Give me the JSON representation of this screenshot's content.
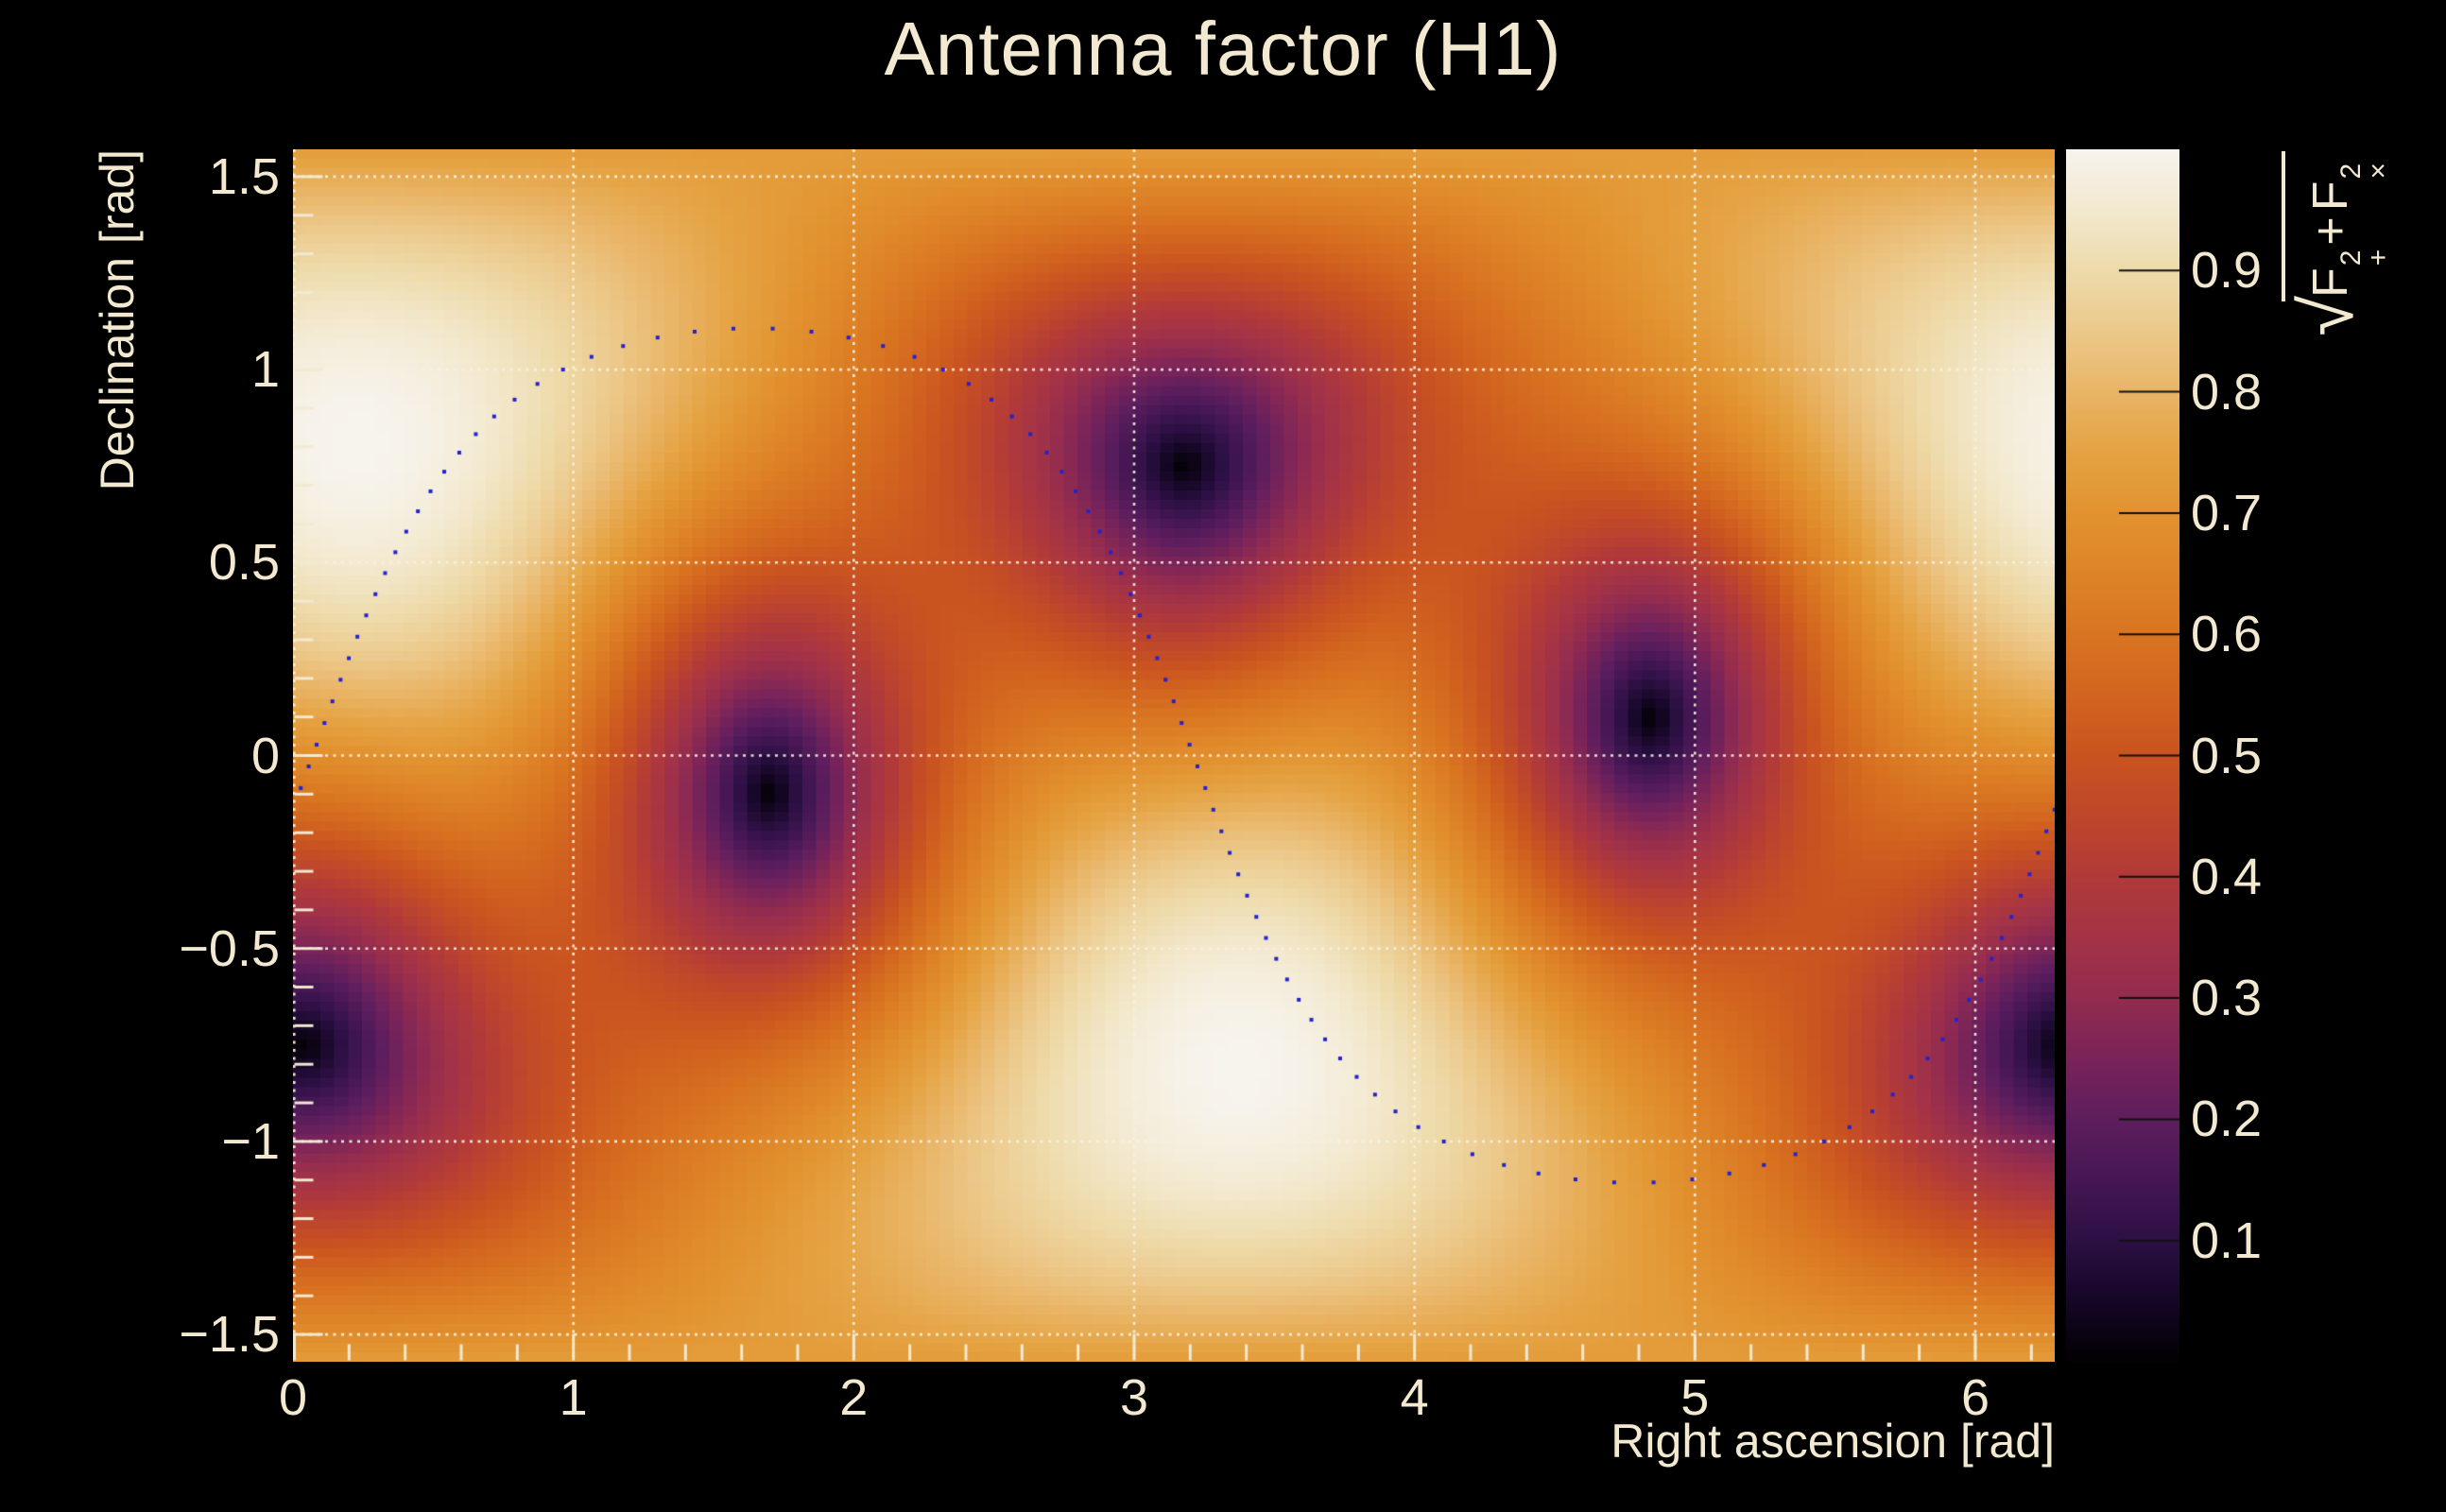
{
  "ui": {
    "background": "#000000",
    "text_color": "#f2e9d0",
    "tick_color": "#f2e9d0",
    "grid_color": "#f6efdc",
    "colorbar_tick_color": "#101010"
  },
  "chart_data": {
    "type": "heatmap",
    "title": "Antenna factor (H1)",
    "xlabel": "Right ascension [rad]",
    "ylabel": "Declination [rad]",
    "zlabel_text": "√(F₊² + Fₓ²)",
    "zlabel_parts": {
      "radical": "√",
      "term1_base": "F",
      "term1_sup": "2",
      "term1_sub": "+",
      "operator": "+",
      "term2_base": "F",
      "term2_sup": "2",
      "term2_sub": "×"
    },
    "xlim": [
      0,
      6.283185
    ],
    "ylim": [
      -1.5707963,
      1.5707963
    ],
    "zlim": [
      0,
      1
    ],
    "x_ticks": {
      "values": [
        0,
        1,
        2,
        3,
        4,
        5,
        6
      ],
      "labels": [
        "0",
        "1",
        "2",
        "3",
        "4",
        "5",
        "6"
      ],
      "minor_step": 0.2
    },
    "y_ticks": {
      "values": [
        1.5,
        1,
        0.5,
        0,
        -0.5,
        -1,
        -1.5
      ],
      "labels": [
        "1.5",
        "1",
        "0.5",
        "0",
        "−0.5",
        "−1",
        "−1.5"
      ],
      "minor_step": 0.1
    },
    "grid": {
      "style": "dotted",
      "x_lines": [
        0,
        1,
        2,
        3,
        4,
        5,
        6
      ],
      "y_lines": [
        -1.5,
        -1,
        -0.5,
        0,
        0.5,
        1,
        1.5
      ]
    },
    "colorbar": {
      "tick_values": [
        0.9,
        0.8,
        0.7,
        0.6,
        0.5,
        0.4,
        0.3,
        0.2,
        0.1
      ],
      "tick_labels": [
        "0.9",
        "0.8",
        "0.7",
        "0.6",
        "0.5",
        "0.4",
        "0.3",
        "0.2",
        "0.1"
      ],
      "range": [
        0,
        1
      ]
    },
    "colormap": {
      "name": "inferno-like",
      "stops": [
        [
          0.0,
          "#030103"
        ],
        [
          0.05,
          "#150726"
        ],
        [
          0.1,
          "#2d1045"
        ],
        [
          0.15,
          "#461754"
        ],
        [
          0.2,
          "#5f1e5e"
        ],
        [
          0.25,
          "#7a2459"
        ],
        [
          0.3,
          "#932c4f"
        ],
        [
          0.35,
          "#a43346"
        ],
        [
          0.4,
          "#b13a39"
        ],
        [
          0.45,
          "#bf472b"
        ],
        [
          0.5,
          "#ca5420"
        ],
        [
          0.55,
          "#d2651f"
        ],
        [
          0.6,
          "#d97521"
        ],
        [
          0.65,
          "#de8428"
        ],
        [
          0.7,
          "#e29330"
        ],
        [
          0.75,
          "#e5a343"
        ],
        [
          0.8,
          "#e9b567"
        ],
        [
          0.85,
          "#ecc98b"
        ],
        [
          0.9,
          "#eedbab"
        ],
        [
          0.95,
          "#f3e9cf"
        ],
        [
          1.0,
          "#f7f4ee"
        ]
      ]
    },
    "field": {
      "model": "interferometer_antenna_pattern_rms",
      "formula": "sqrt(F_plus^2 + F_cross^2)",
      "zenith_ra_rad": 0.23,
      "zenith_dec_rad": 0.81,
      "arm_azimuth_rad": 0.645,
      "bins": [
        128,
        128
      ],
      "maxima_radec": [
        [
          0.23,
          0.81
        ],
        [
          3.37,
          -0.81
        ]
      ],
      "minima_radec": [
        [
          1.7,
          -0.1
        ],
        [
          3.17,
          0.75
        ],
        [
          4.85,
          0.1
        ],
        [
          6.23,
          -0.76
        ]
      ]
    },
    "overlay_curve": {
      "model": "great_circle",
      "inclination_rad": 1.1071,
      "ascending_node_ra_rad": 0.07,
      "n_points": 100,
      "phase_offset_rad": 0.0314,
      "marker": "filled_square",
      "marker_size_px": 4,
      "marker_color": "#2323cf"
    }
  }
}
